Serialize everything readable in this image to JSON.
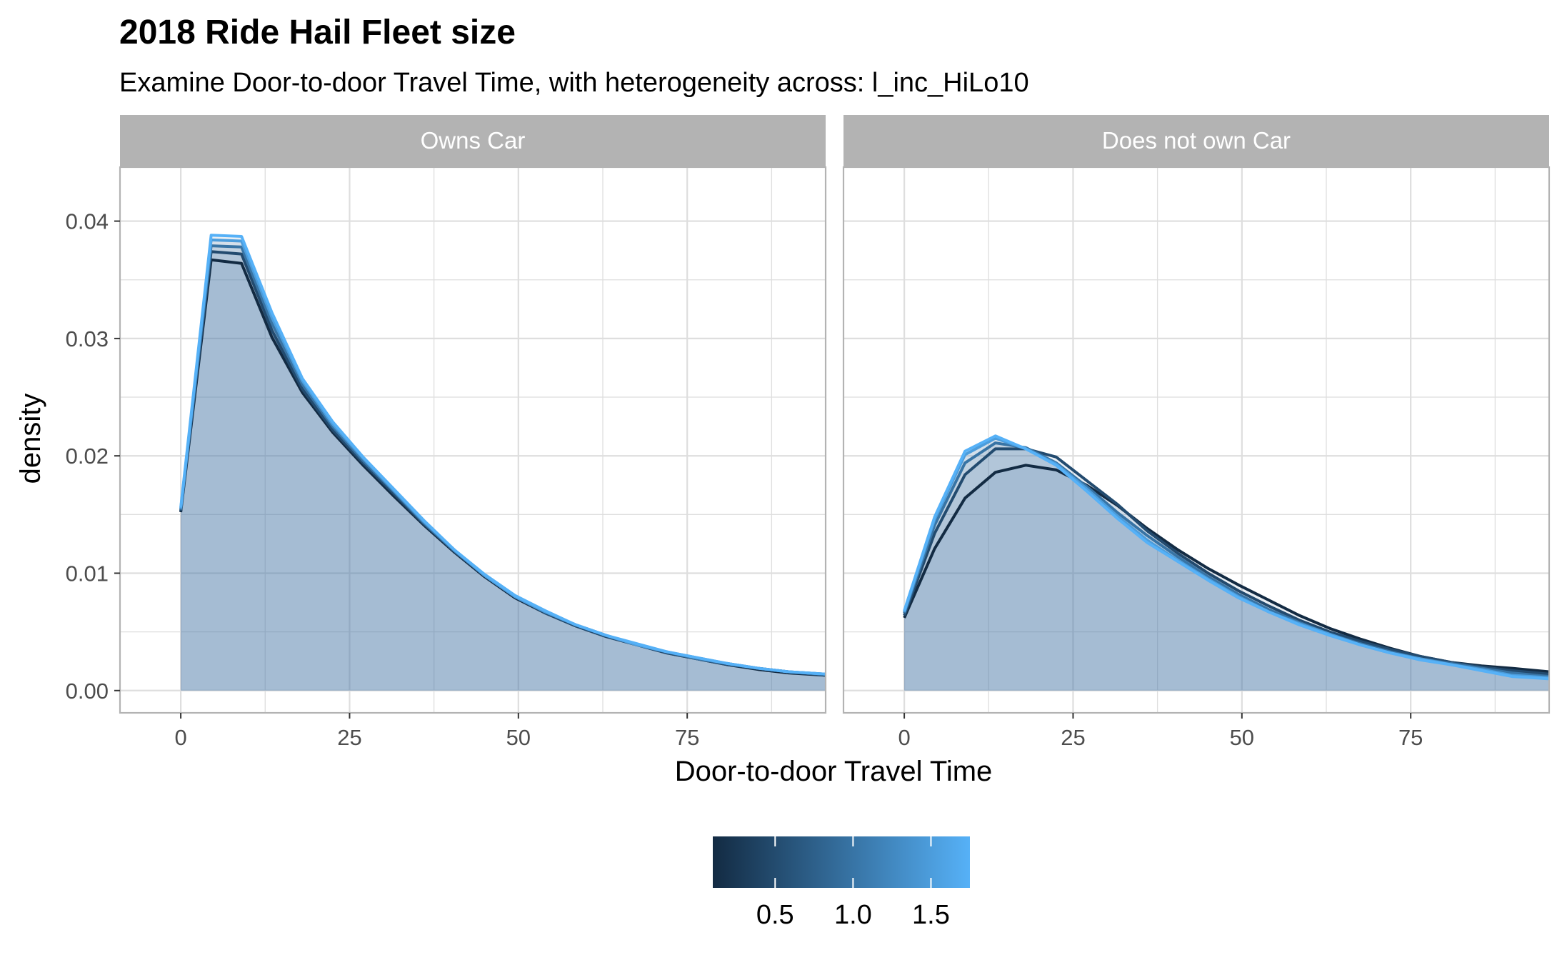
{
  "title": "2018 Ride Hail Fleet size",
  "subtitle": "Examine Door-to-door Travel Time, with heterogeneity across: l_inc_HiLo10",
  "colors": {
    "strip_bg": "#b3b3b3",
    "grid": "#dedede",
    "panel_border": "#b3b3b3",
    "area_fill": "#4a7fad",
    "color_low": "#132b43",
    "color_high": "#56b1f7"
  },
  "chart_data": {
    "type": "area",
    "xlabel": "Door-to-door Travel Time",
    "ylabel": "density",
    "xlim": [
      -9,
      95.5
    ],
    "ylim": [
      -0.0019,
      0.0446
    ],
    "x_ticks": [
      0,
      25,
      50,
      75
    ],
    "x_tick_labels": [
      "0",
      "25",
      "50",
      "75"
    ],
    "y_ticks": [
      0,
      0.01,
      0.02,
      0.03,
      0.04
    ],
    "y_tick_labels": [
      "0.00",
      "0.01",
      "0.02",
      "0.03",
      "0.04"
    ],
    "x": [
      0,
      4.5,
      9,
      13.5,
      18,
      22.5,
      27,
      31.5,
      36,
      40.5,
      45,
      49.5,
      54,
      58.5,
      63,
      67.5,
      72,
      76.5,
      81,
      85.5,
      90,
      95.5
    ],
    "legend": {
      "type": "colorbar",
      "ticks": [
        0.5,
        1.0,
        1.5
      ],
      "tick_labels": [
        "0.5",
        "1.0",
        "1.5"
      ],
      "min": 0.1,
      "max": 1.75
    },
    "facets": [
      {
        "label": "Owns Car",
        "series": [
          {
            "color_value": 0.1,
            "values": [
              0.0152,
              0.0367,
              0.0364,
              0.0301,
              0.0254,
              0.022,
              0.0192,
              0.0166,
              0.0141,
              0.0118,
              0.0097,
              0.0079,
              0.0066,
              0.0055,
              0.0046,
              0.0039,
              0.0032,
              0.0027,
              0.0022,
              0.0018,
              0.0015,
              0.0013
            ]
          },
          {
            "color_value": 0.5,
            "values": [
              0.0153,
              0.0374,
              0.0372,
              0.0307,
              0.0257,
              0.0222,
              0.0194,
              0.0168,
              0.0142,
              0.0119,
              0.0098,
              0.008,
              0.0066,
              0.0055,
              0.0046,
              0.0039,
              0.0032,
              0.0027,
              0.0022,
              0.0019,
              0.0016,
              0.0013
            ]
          },
          {
            "color_value": 1.0,
            "values": [
              0.0154,
              0.0379,
              0.0378,
              0.0313,
              0.0261,
              0.0225,
              0.0196,
              0.017,
              0.0143,
              0.0119,
              0.0098,
              0.008,
              0.0067,
              0.0056,
              0.0047,
              0.0039,
              0.0033,
              0.0027,
              0.0023,
              0.0019,
              0.0016,
              0.0014
            ]
          },
          {
            "color_value": 1.5,
            "values": [
              0.0155,
              0.0384,
              0.0383,
              0.0318,
              0.0264,
              0.0227,
              0.0198,
              0.0171,
              0.0144,
              0.012,
              0.0098,
              0.008,
              0.0067,
              0.0056,
              0.0047,
              0.0039,
              0.0033,
              0.0028,
              0.0023,
              0.0019,
              0.0016,
              0.0014
            ]
          },
          {
            "color_value": 1.75,
            "values": [
              0.0156,
              0.0388,
              0.0387,
              0.0322,
              0.0266,
              0.0229,
              0.0199,
              0.0172,
              0.0145,
              0.012,
              0.0099,
              0.0081,
              0.0068,
              0.0056,
              0.0047,
              0.004,
              0.0033,
              0.0028,
              0.0023,
              0.0019,
              0.0016,
              0.0014
            ]
          }
        ]
      },
      {
        "label": "Does not own Car",
        "series": [
          {
            "color_value": 0.1,
            "values": [
              0.0062,
              0.0121,
              0.0164,
              0.0186,
              0.0192,
              0.0188,
              0.0175,
              0.0158,
              0.0138,
              0.012,
              0.0104,
              0.009,
              0.0077,
              0.0064,
              0.0053,
              0.0044,
              0.0036,
              0.0029,
              0.0024,
              0.0021,
              0.0019,
              0.0016
            ]
          },
          {
            "color_value": 0.5,
            "values": [
              0.0064,
              0.0134,
              0.0184,
              0.0206,
              0.0206,
              0.0199,
              0.0179,
              0.0159,
              0.0136,
              0.0117,
              0.01,
              0.0085,
              0.0072,
              0.006,
              0.005,
              0.0042,
              0.0035,
              0.0029,
              0.0024,
              0.002,
              0.0017,
              0.0014
            ]
          },
          {
            "color_value": 1.0,
            "values": [
              0.0066,
              0.0141,
              0.0194,
              0.0211,
              0.0207,
              0.0194,
              0.0174,
              0.0152,
              0.0132,
              0.0114,
              0.0097,
              0.0082,
              0.0069,
              0.0058,
              0.0048,
              0.004,
              0.0033,
              0.0027,
              0.0023,
              0.0019,
              0.0015,
              0.0012
            ]
          },
          {
            "color_value": 1.5,
            "values": [
              0.0067,
              0.0146,
              0.0201,
              0.0215,
              0.0206,
              0.0193,
              0.0172,
              0.0149,
              0.0128,
              0.0111,
              0.0095,
              0.008,
              0.0067,
              0.0057,
              0.0048,
              0.0039,
              0.0032,
              0.0027,
              0.0022,
              0.0018,
              0.0013,
              0.0011
            ]
          },
          {
            "color_value": 1.75,
            "values": [
              0.0068,
              0.0148,
              0.0204,
              0.0217,
              0.0206,
              0.0192,
              0.017,
              0.0147,
              0.0126,
              0.011,
              0.0094,
              0.0079,
              0.0067,
              0.0056,
              0.0047,
              0.0039,
              0.0032,
              0.0026,
              0.0022,
              0.0017,
              0.0012,
              0.001
            ]
          }
        ]
      }
    ]
  }
}
